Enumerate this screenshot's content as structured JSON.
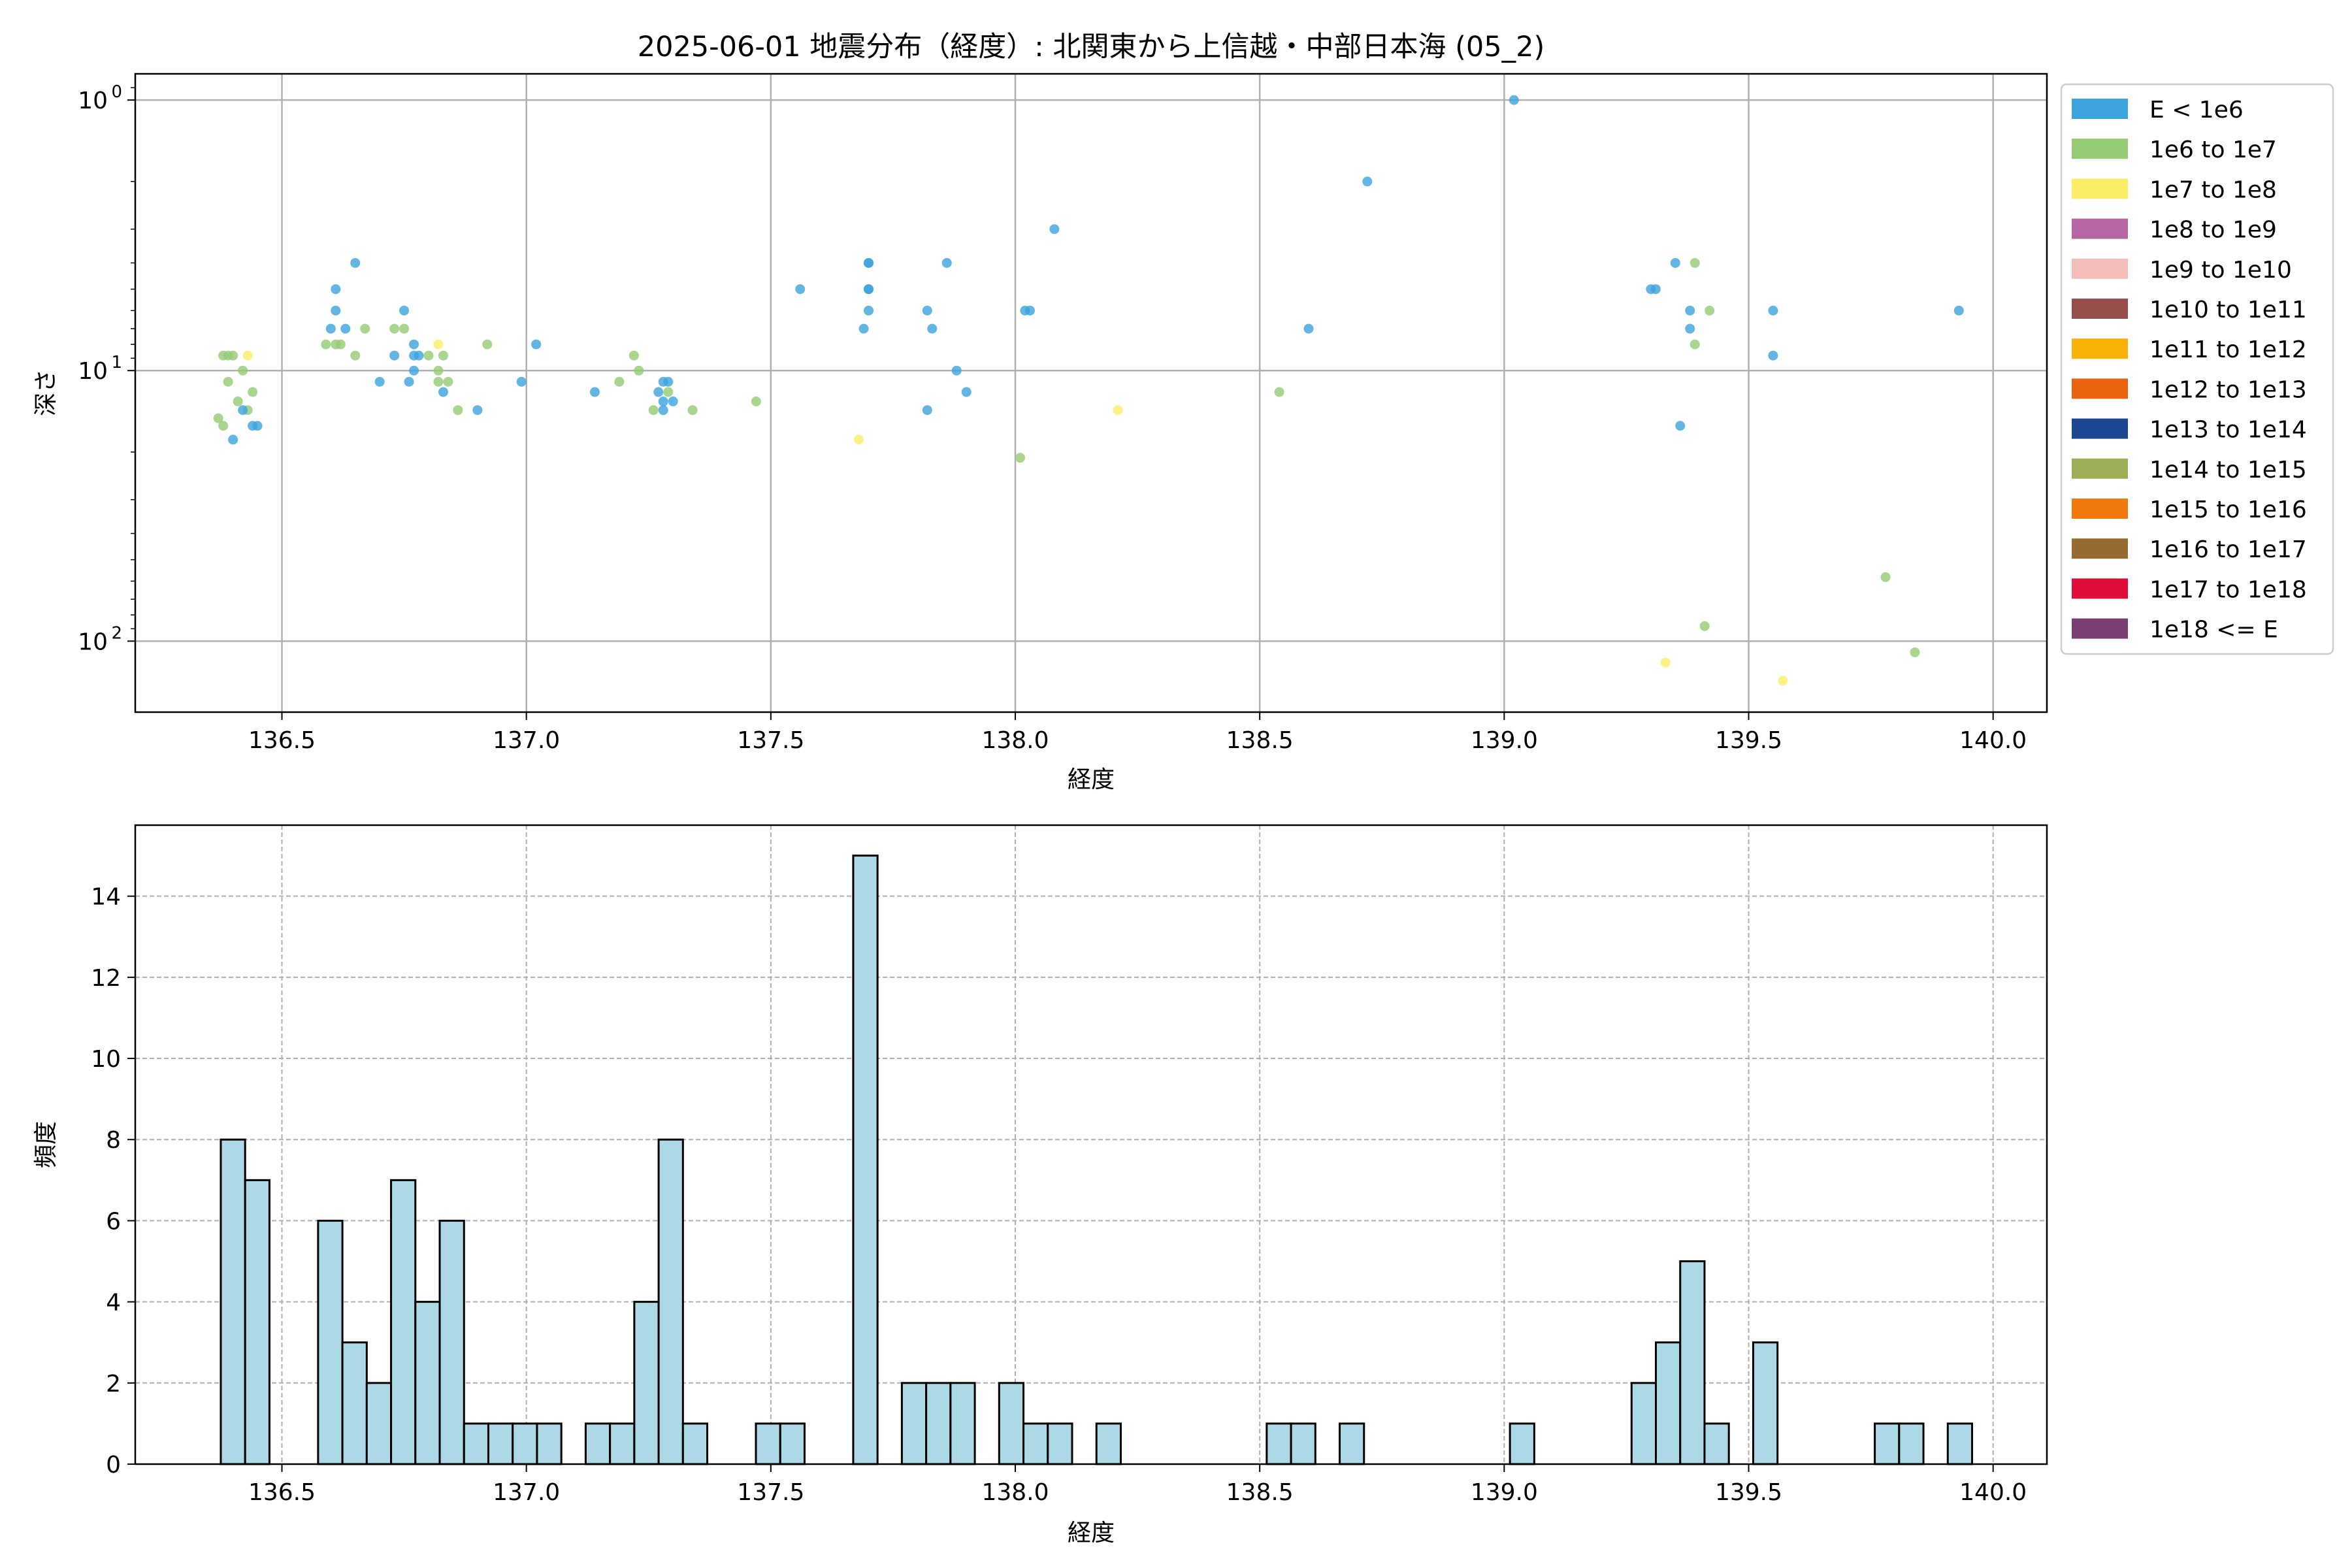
{
  "chart_data": [
    {
      "type": "scatter",
      "title": "2025-06-01 地震分布（経度）: 北関東から上信越・中部日本海 (05_2)",
      "xlabel": "経度",
      "ylabel": "深さ",
      "xlim": [
        136.2,
        140.11
      ],
      "ylim": [
        183,
        0.8
      ],
      "y_scale": "log",
      "y_inverted": true,
      "grid": true,
      "x_ticks": [
        136.5,
        137.0,
        137.5,
        138.0,
        138.5,
        139.0,
        139.5,
        140.0
      ],
      "x_tick_labels": [
        "136.5",
        "137.0",
        "137.5",
        "138.0",
        "138.5",
        "139.0",
        "139.5",
        "140.0"
      ],
      "y_ticks": [
        1,
        10,
        100
      ],
      "y_tick_labels": [
        {
          "base": "10",
          "exp": "0"
        },
        {
          "base": "10",
          "exp": "1"
        },
        {
          "base": "10",
          "exp": "2"
        }
      ],
      "legend_position": "outside-right",
      "legend": [
        {
          "label": "E < 1e6",
          "color": "#3ca3dd"
        },
        {
          "label": "1e6 to 1e7",
          "color": "#94cb73"
        },
        {
          "label": "1e7 to 1e8",
          "color": "#fbed63"
        },
        {
          "label": "1e8 to 1e9",
          "color": "#b865a4"
        },
        {
          "label": "1e9 to 1e10",
          "color": "#f4bdba"
        },
        {
          "label": "1e10 to 1e11",
          "color": "#984e4a"
        },
        {
          "label": "1e11 to 1e12",
          "color": "#f7b107"
        },
        {
          "label": "1e12 to 1e13",
          "color": "#e9620e"
        },
        {
          "label": "1e13 to 1e14",
          "color": "#1c4792"
        },
        {
          "label": "1e14 to 1e15",
          "color": "#9caf56"
        },
        {
          "label": "1e15 to 1e16",
          "color": "#f0780c"
        },
        {
          "label": "1e16 to 1e17",
          "color": "#956b2f"
        },
        {
          "label": "1e17 to 1e18",
          "color": "#de0b3b"
        },
        {
          "label": "1e18 <= E",
          "color": "#7a3e72"
        }
      ],
      "points": [
        {
          "x": 136.38,
          "y": 8.8,
          "c": 1
        },
        {
          "x": 136.39,
          "y": 8.8,
          "c": 1
        },
        {
          "x": 136.4,
          "y": 8.8,
          "c": 1
        },
        {
          "x": 136.43,
          "y": 8.8,
          "c": 2
        },
        {
          "x": 136.42,
          "y": 10.0,
          "c": 1
        },
        {
          "x": 136.39,
          "y": 11.0,
          "c": 1
        },
        {
          "x": 136.44,
          "y": 12.0,
          "c": 1
        },
        {
          "x": 136.41,
          "y": 13.0,
          "c": 1
        },
        {
          "x": 136.43,
          "y": 14.0,
          "c": 1
        },
        {
          "x": 136.42,
          "y": 14.0,
          "c": 0
        },
        {
          "x": 136.37,
          "y": 15.0,
          "c": 1
        },
        {
          "x": 136.38,
          "y": 16.0,
          "c": 1
        },
        {
          "x": 136.44,
          "y": 16.0,
          "c": 0
        },
        {
          "x": 136.45,
          "y": 16.0,
          "c": 0
        },
        {
          "x": 136.4,
          "y": 18.0,
          "c": 0
        },
        {
          "x": 136.65,
          "y": 4.0,
          "c": 0
        },
        {
          "x": 136.61,
          "y": 5.0,
          "c": 0
        },
        {
          "x": 136.61,
          "y": 6.0,
          "c": 0
        },
        {
          "x": 136.6,
          "y": 7.0,
          "c": 0
        },
        {
          "x": 136.63,
          "y": 7.0,
          "c": 0
        },
        {
          "x": 136.59,
          "y": 8.0,
          "c": 1
        },
        {
          "x": 136.61,
          "y": 8.0,
          "c": 1
        },
        {
          "x": 136.62,
          "y": 8.0,
          "c": 1
        },
        {
          "x": 136.65,
          "y": 8.8,
          "c": 1
        },
        {
          "x": 136.67,
          "y": 7.0,
          "c": 1
        },
        {
          "x": 136.75,
          "y": 6.0,
          "c": 0
        },
        {
          "x": 136.73,
          "y": 7.0,
          "c": 1
        },
        {
          "x": 136.75,
          "y": 7.0,
          "c": 1
        },
        {
          "x": 136.77,
          "y": 8.0,
          "c": 0
        },
        {
          "x": 136.73,
          "y": 8.8,
          "c": 0
        },
        {
          "x": 136.77,
          "y": 8.8,
          "c": 0
        },
        {
          "x": 136.78,
          "y": 8.8,
          "c": 0
        },
        {
          "x": 136.8,
          "y": 8.8,
          "c": 1
        },
        {
          "x": 136.77,
          "y": 10.0,
          "c": 0
        },
        {
          "x": 136.7,
          "y": 11.0,
          "c": 0
        },
        {
          "x": 136.76,
          "y": 11.0,
          "c": 0
        },
        {
          "x": 136.82,
          "y": 8.0,
          "c": 2
        },
        {
          "x": 136.83,
          "y": 8.8,
          "c": 1
        },
        {
          "x": 136.82,
          "y": 10.0,
          "c": 1
        },
        {
          "x": 136.82,
          "y": 11.0,
          "c": 1
        },
        {
          "x": 136.84,
          "y": 11.0,
          "c": 1
        },
        {
          "x": 136.83,
          "y": 12.0,
          "c": 0
        },
        {
          "x": 136.86,
          "y": 14.0,
          "c": 1
        },
        {
          "x": 136.9,
          "y": 14.0,
          "c": 0
        },
        {
          "x": 136.92,
          "y": 8.0,
          "c": 1
        },
        {
          "x": 136.99,
          "y": 11.0,
          "c": 0
        },
        {
          "x": 137.02,
          "y": 8.0,
          "c": 0
        },
        {
          "x": 137.14,
          "y": 12.0,
          "c": 0
        },
        {
          "x": 137.19,
          "y": 11.0,
          "c": 1
        },
        {
          "x": 137.22,
          "y": 8.8,
          "c": 1
        },
        {
          "x": 137.23,
          "y": 10.0,
          "c": 1
        },
        {
          "x": 137.28,
          "y": 11.0,
          "c": 0
        },
        {
          "x": 137.29,
          "y": 11.0,
          "c": 0
        },
        {
          "x": 137.27,
          "y": 12.0,
          "c": 0
        },
        {
          "x": 137.29,
          "y": 12.0,
          "c": 1
        },
        {
          "x": 137.28,
          "y": 13.0,
          "c": 0
        },
        {
          "x": 137.3,
          "y": 13.0,
          "c": 0
        },
        {
          "x": 137.26,
          "y": 14.0,
          "c": 1
        },
        {
          "x": 137.28,
          "y": 14.0,
          "c": 0
        },
        {
          "x": 137.34,
          "y": 14.0,
          "c": 1
        },
        {
          "x": 137.47,
          "y": 13.0,
          "c": 1
        },
        {
          "x": 137.56,
          "y": 5.0,
          "c": 0
        },
        {
          "x": 137.68,
          "y": 18.0,
          "c": 2
        },
        {
          "x": 137.7,
          "y": 4.0,
          "c": 0
        },
        {
          "x": 137.7,
          "y": 4.0,
          "c": 0
        },
        {
          "x": 137.7,
          "y": 5.0,
          "c": 0
        },
        {
          "x": 137.7,
          "y": 5.0,
          "c": 0
        },
        {
          "x": 137.7,
          "y": 6.0,
          "c": 0
        },
        {
          "x": 137.69,
          "y": 7.0,
          "c": 0
        },
        {
          "x": 137.86,
          "y": 4.0,
          "c": 0
        },
        {
          "x": 137.82,
          "y": 6.0,
          "c": 0
        },
        {
          "x": 137.83,
          "y": 7.0,
          "c": 0
        },
        {
          "x": 137.88,
          "y": 10.0,
          "c": 0
        },
        {
          "x": 137.9,
          "y": 12.0,
          "c": 0
        },
        {
          "x": 137.82,
          "y": 14.0,
          "c": 0
        },
        {
          "x": 138.08,
          "y": 3.0,
          "c": 0
        },
        {
          "x": 138.02,
          "y": 6.0,
          "c": 0
        },
        {
          "x": 138.03,
          "y": 6.0,
          "c": 0
        },
        {
          "x": 138.01,
          "y": 21.0,
          "c": 1
        },
        {
          "x": 138.21,
          "y": 14.0,
          "c": 2
        },
        {
          "x": 138.54,
          "y": 12.0,
          "c": 1
        },
        {
          "x": 138.6,
          "y": 7.0,
          "c": 0
        },
        {
          "x": 138.72,
          "y": 2.0,
          "c": 0
        },
        {
          "x": 139.02,
          "y": 1.0,
          "c": 0
        },
        {
          "x": 139.3,
          "y": 5.0,
          "c": 0
        },
        {
          "x": 139.31,
          "y": 5.0,
          "c": 0
        },
        {
          "x": 139.35,
          "y": 4.0,
          "c": 0
        },
        {
          "x": 139.39,
          "y": 4.0,
          "c": 1
        },
        {
          "x": 139.38,
          "y": 6.0,
          "c": 0
        },
        {
          "x": 139.42,
          "y": 6.0,
          "c": 1
        },
        {
          "x": 139.38,
          "y": 7.0,
          "c": 0
        },
        {
          "x": 139.39,
          "y": 8.0,
          "c": 1
        },
        {
          "x": 139.36,
          "y": 16.0,
          "c": 0
        },
        {
          "x": 139.41,
          "y": 88.0,
          "c": 1
        },
        {
          "x": 139.33,
          "y": 120.0,
          "c": 2
        },
        {
          "x": 139.55,
          "y": 6.0,
          "c": 0
        },
        {
          "x": 139.55,
          "y": 8.8,
          "c": 0
        },
        {
          "x": 139.57,
          "y": 140.0,
          "c": 2
        },
        {
          "x": 139.78,
          "y": 58.0,
          "c": 1
        },
        {
          "x": 139.84,
          "y": 110.0,
          "c": 1
        },
        {
          "x": 139.93,
          "y": 6.0,
          "c": 0
        }
      ]
    },
    {
      "type": "bar",
      "xlabel": "経度",
      "ylabel": "頻度",
      "xlim": [
        136.2,
        140.11
      ],
      "ylim": [
        0,
        15.75
      ],
      "grid": true,
      "x_ticks": [
        136.5,
        137.0,
        137.5,
        138.0,
        138.5,
        139.0,
        139.5,
        140.0
      ],
      "x_tick_labels": [
        "136.5",
        "137.0",
        "137.5",
        "138.0",
        "138.5",
        "139.0",
        "139.5",
        "140.0"
      ],
      "y_ticks": [
        0,
        2,
        4,
        6,
        8,
        10,
        12,
        14
      ],
      "y_tick_labels": [
        "0",
        "2",
        "4",
        "6",
        "8",
        "10",
        "12",
        "14"
      ],
      "bin_start": 136.375,
      "bin_width": 0.04975,
      "bar_color": "#add8e6",
      "counts": [
        8,
        7,
        0,
        0,
        6,
        3,
        2,
        7,
        4,
        6,
        1,
        1,
        1,
        1,
        0,
        1,
        1,
        4,
        8,
        1,
        0,
        0,
        1,
        1,
        0,
        0,
        15,
        0,
        2,
        2,
        2,
        0,
        2,
        1,
        1,
        0,
        1,
        0,
        0,
        0,
        0,
        0,
        0,
        1,
        1,
        0,
        1,
        0,
        0,
        0,
        0,
        0,
        0,
        1,
        0,
        0,
        0,
        0,
        2,
        3,
        5,
        1,
        0,
        3,
        0,
        0,
        0,
        0,
        1,
        1,
        0,
        1
      ]
    }
  ]
}
